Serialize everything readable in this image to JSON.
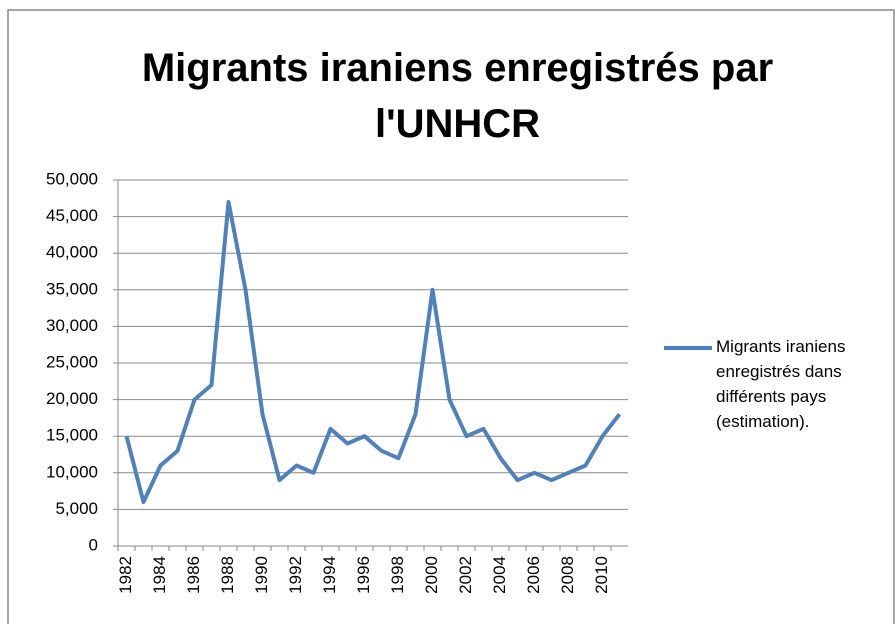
{
  "chart_data": {
    "type": "line",
    "title": "Migrants iraniens enregistrés  par l'UNHCR",
    "categories": [
      "1982",
      null,
      "1984",
      null,
      "1986",
      null,
      "1988",
      null,
      "1990",
      null,
      "1992",
      null,
      "1994",
      null,
      "1996",
      null,
      "1998",
      null,
      "2000",
      null,
      "2002",
      null,
      "2004",
      null,
      "2006",
      null,
      "2008",
      null,
      "2010",
      null
    ],
    "series": [
      {
        "name": "Migrants iraniens enregistrés dans différents pays (estimation).",
        "color": "#4f81bd",
        "values": [
          15000,
          6000,
          11000,
          13000,
          20000,
          22000,
          47000,
          35000,
          18000,
          9000,
          11000,
          10000,
          16000,
          14000,
          15000,
          13000,
          12000,
          18000,
          35000,
          20000,
          15000,
          16000,
          12000,
          9000,
          10000,
          9000,
          10000,
          11000,
          15000,
          18000
        ]
      }
    ],
    "ylim": [
      0,
      50000
    ],
    "yticks": [
      0,
      {
        "value": 5000,
        "label": "5,000"
      },
      {
        "value": 10000,
        "label": "10,000"
      },
      {
        "value": 15000,
        "label": "15,000"
      },
      {
        "value": 20000,
        "label": "20,000"
      },
      {
        "value": 25000,
        "label": "25,000"
      },
      {
        "value": 30000,
        "label": "30,000"
      },
      {
        "value": 35000,
        "label": "35,000"
      },
      {
        "value": 40000,
        "label": "40,000"
      },
      {
        "value": 45000,
        "label": "45,000"
      },
      {
        "value": 50000,
        "label": "50,000"
      }
    ],
    "grid": true,
    "legend": "right"
  }
}
